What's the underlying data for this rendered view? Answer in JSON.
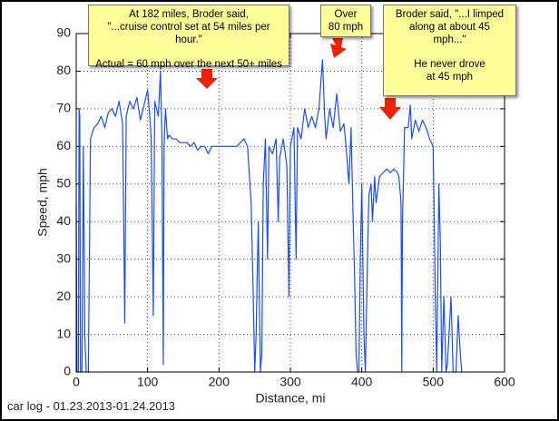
{
  "chart_data": {
    "type": "line",
    "x_label": "Distance, mi",
    "y_label": "Speed, mph",
    "footnote": "car log - 01.23.2013-01.24.2013",
    "color": "#1a4cff",
    "grid": true,
    "xlim": [
      0,
      600
    ],
    "ylim": [
      0,
      90
    ],
    "xticks": [
      0,
      100,
      200,
      300,
      400,
      500,
      600
    ],
    "yticks": [
      0,
      10,
      20,
      30,
      40,
      50,
      60,
      70,
      80,
      90
    ],
    "annotations": [
      {
        "paragraphs": [
          [
            "At 182 miles, Broder said,",
            "\"...cruise control set at 54 miles per hour.\""
          ],
          [
            "Actual = 60 mph over the next 50+ miles"
          ]
        ]
      },
      {
        "paragraphs": [
          [
            "Over",
            "80 mph"
          ]
        ]
      },
      {
        "paragraphs": [
          [
            "Broder said, \"...I limped",
            "along at about 45",
            "mph...\""
          ],
          [
            "He never drove",
            "at 45 mph"
          ]
        ]
      }
    ],
    "x": [
      0,
      1,
      3,
      4,
      5,
      6,
      8,
      10,
      12,
      14,
      17,
      20,
      25,
      30,
      35,
      40,
      45,
      50,
      55,
      60,
      65,
      68,
      70,
      75,
      80,
      85,
      90,
      95,
      100,
      103,
      105,
      108,
      110,
      115,
      118,
      120,
      122,
      123,
      125,
      128,
      130,
      135,
      140,
      145,
      150,
      155,
      160,
      165,
      170,
      175,
      180,
      185,
      190,
      195,
      200,
      205,
      210,
      215,
      220,
      225,
      230,
      235,
      240,
      245,
      248,
      250,
      252,
      255,
      258,
      260,
      262,
      265,
      268,
      270,
      275,
      280,
      283,
      285,
      290,
      295,
      298,
      300,
      305,
      308,
      310,
      315,
      320,
      325,
      330,
      335,
      340,
      345,
      348,
      350,
      355,
      360,
      365,
      370,
      375,
      378,
      382,
      385,
      388,
      390,
      392,
      394,
      396,
      398,
      400,
      403,
      405,
      408,
      410,
      413,
      415,
      418,
      420,
      425,
      430,
      435,
      440,
      445,
      450,
      452,
      455,
      456,
      457,
      460,
      465,
      468,
      470,
      475,
      480,
      485,
      490,
      495,
      500,
      503,
      505,
      508,
      510,
      512,
      515,
      518,
      520,
      525,
      528,
      532,
      535,
      538,
      540,
      542
    ],
    "values": [
      45,
      0,
      0,
      70,
      68,
      0,
      0,
      60,
      10,
      0,
      0,
      62,
      65,
      66,
      68,
      65,
      69,
      70,
      68,
      72,
      66,
      13,
      68,
      72,
      70,
      73,
      67,
      71,
      75,
      68,
      62,
      15,
      72,
      68,
      80,
      63,
      2,
      60,
      70,
      62,
      63,
      62,
      62,
      61,
      61,
      61,
      60,
      61,
      59,
      60,
      60,
      58,
      60,
      60,
      60,
      60,
      60,
      60,
      60,
      60,
      61,
      62,
      60,
      45,
      20,
      0,
      10,
      40,
      0,
      5,
      50,
      62,
      30,
      60,
      58,
      62,
      40,
      57,
      62,
      55,
      20,
      60,
      65,
      30,
      65,
      62,
      70,
      65,
      68,
      65,
      70,
      83,
      68,
      62,
      70,
      65,
      74,
      64,
      66,
      60,
      50,
      65,
      40,
      25,
      5,
      0,
      0,
      30,
      50,
      10,
      0,
      30,
      47,
      50,
      40,
      52,
      45,
      52,
      53,
      54,
      53,
      54,
      53,
      52,
      45,
      0,
      40,
      65,
      65,
      71,
      62,
      67,
      64,
      67,
      65,
      62,
      60,
      20,
      0,
      50,
      35,
      0,
      20,
      0,
      2,
      20,
      0,
      0,
      15,
      5,
      0,
      0
    ]
  }
}
